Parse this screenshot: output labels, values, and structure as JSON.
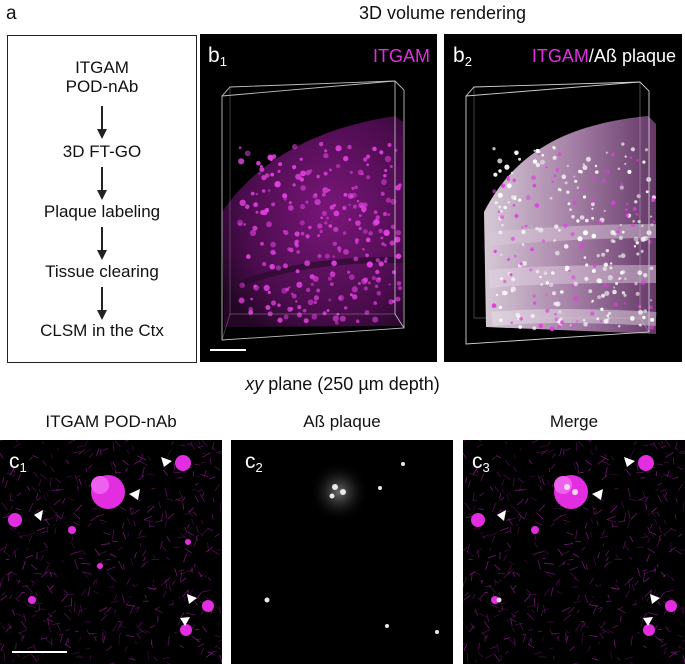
{
  "figure": {
    "panel_letter": "a",
    "title_3d": "3D volume rendering",
    "title_xy_italic": "xy",
    "title_xy_rest": " plane (250 µm depth)"
  },
  "flowchart": {
    "steps": [
      {
        "line1": "ITGAM",
        "line2": "POD-nAb"
      },
      {
        "line1": "3D FT-GO"
      },
      {
        "line1": "Plaque labeling"
      },
      {
        "line1": "Tissue clearing"
      },
      {
        "line1": "CLSM in the Ctx"
      }
    ]
  },
  "panels": {
    "b1": {
      "letter": "b",
      "sub": "1",
      "channel": "ITGAM"
    },
    "b2": {
      "letter": "b",
      "sub": "2",
      "channel_a": "ITGAM",
      "separator": "/",
      "channel_b": "Aß plaque"
    },
    "c1": {
      "letter": "c",
      "sub": "1",
      "column_title": "ITGAM POD-nAb"
    },
    "c2": {
      "letter": "c",
      "sub": "2",
      "column_title": "Aß plaque"
    },
    "c3": {
      "letter": "c",
      "sub": "3",
      "column_title": "Merge"
    }
  },
  "colors": {
    "magenta": "#e22ee0",
    "background": "#000000",
    "plaque": "#f2e8f2"
  }
}
